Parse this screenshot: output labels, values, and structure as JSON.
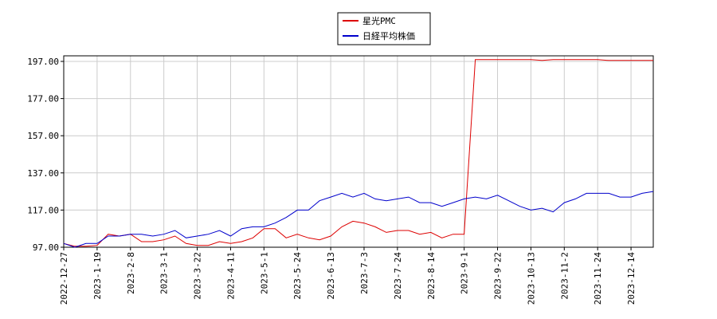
{
  "chart_data": {
    "type": "line",
    "categories": [
      "2022-12-27",
      null,
      null,
      "2023-1-19",
      null,
      null,
      "2023-2-8",
      null,
      null,
      "2023-3-1",
      null,
      null,
      "2023-3-22",
      null,
      null,
      "2023-4-11",
      null,
      null,
      "2023-5-1",
      null,
      null,
      "2023-5-24",
      null,
      null,
      "2023-6-13",
      null,
      null,
      "2023-7-3",
      null,
      null,
      "2023-7-24",
      null,
      null,
      "2023-8-14",
      null,
      null,
      "2023-9-1",
      null,
      null,
      "2023-9-22",
      null,
      null,
      "2023-10-13",
      null,
      null,
      "2023-11-2",
      null,
      null,
      "2023-11-24",
      null,
      null,
      "2023-12-14",
      null,
      null
    ],
    "series": [
      {
        "name": "星光PMC",
        "color": "#dd0000",
        "values": [
          99,
          97.5,
          97.5,
          98,
          104,
          103,
          104,
          100,
          100,
          101,
          103,
          99,
          98,
          98,
          100,
          99,
          100,
          102,
          107,
          107,
          102,
          104,
          102,
          101,
          103,
          108,
          111,
          110,
          108,
          105,
          106,
          106,
          104,
          105,
          102,
          104,
          104,
          198,
          198,
          198,
          198,
          198,
          198,
          197.5,
          198,
          198,
          198,
          198,
          198,
          197.5,
          197.5,
          197.5,
          197.5,
          197.5
        ]
      },
      {
        "name": "日経平均株価",
        "color": "#0000cc",
        "values": [
          99,
          97,
          99,
          99,
          103,
          103,
          104,
          104,
          103,
          104,
          106,
          102,
          103,
          104,
          106,
          103,
          107,
          108,
          108,
          110,
          113,
          117,
          117,
          122,
          124,
          126,
          124,
          126,
          123,
          122,
          123,
          124,
          121,
          121,
          119,
          121,
          123,
          124,
          123,
          125,
          122,
          119,
          117,
          118,
          116,
          121,
          123,
          126,
          126,
          126,
          124,
          124,
          126,
          127
        ]
      }
    ],
    "ylim": [
      97,
      200
    ],
    "yticks": [
      {
        "value": 97,
        "label": "97.00"
      },
      {
        "value": 117,
        "label": "117.00"
      },
      {
        "value": 137,
        "label": "137.00"
      },
      {
        "value": 157,
        "label": "157.00"
      },
      {
        "value": 177,
        "label": "177.00"
      },
      {
        "value": 197,
        "label": "197.00"
      }
    ],
    "grid": true
  }
}
